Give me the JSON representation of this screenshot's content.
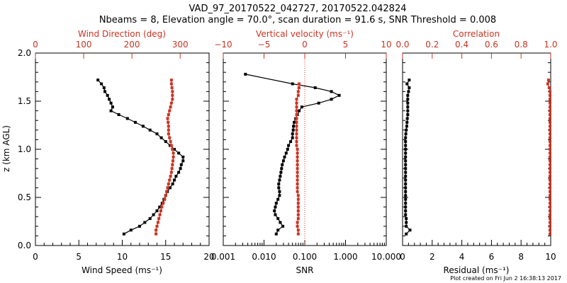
{
  "title": {
    "line1": "VAD_97_20170522_042727, 20170522.042824",
    "line2": "Nbeams = 8, Elevation angle = 70.0°, scan duration = 91.6 s, SNR Threshold = 0.008"
  },
  "footer": "Plot created on Fri Jun  2 16:38:13 2017",
  "colors": {
    "black_series": "#000000",
    "red_series": "#cc3322",
    "frame": "#000000"
  },
  "chart_data": [
    {
      "type": "line",
      "panel": "wind",
      "ylabel": "z (km AGL)",
      "ylim": [
        0,
        2
      ],
      "yticks": [
        "0.0",
        "0.5",
        "1.0",
        "1.5",
        "2.0"
      ],
      "xlabel": "Wind Speed (ms⁻¹)",
      "xlim": [
        0,
        20
      ],
      "xticks": [
        "0",
        "5",
        "10",
        "15",
        "20"
      ],
      "x2label": "Wind Direction (deg)",
      "x2lim": [
        0,
        360
      ],
      "x2ticks": [
        "0",
        "100",
        "200",
        "300"
      ],
      "series": [
        {
          "axis": "bottom",
          "color": "#000000",
          "points": [
            [
              10.2,
              0.12
            ],
            [
              11.0,
              0.16
            ],
            [
              12.0,
              0.2
            ],
            [
              12.6,
              0.24
            ],
            [
              13.2,
              0.28
            ],
            [
              13.6,
              0.32
            ],
            [
              14.0,
              0.36
            ],
            [
              14.3,
              0.4
            ],
            [
              14.6,
              0.44
            ],
            [
              14.8,
              0.48
            ],
            [
              15.0,
              0.52
            ],
            [
              15.2,
              0.56
            ],
            [
              15.5,
              0.6
            ],
            [
              15.8,
              0.64
            ],
            [
              16.0,
              0.68
            ],
            [
              16.2,
              0.72
            ],
            [
              16.5,
              0.76
            ],
            [
              16.7,
              0.8
            ],
            [
              16.8,
              0.84
            ],
            [
              17.0,
              0.88
            ],
            [
              17.0,
              0.92
            ],
            [
              16.5,
              0.96
            ],
            [
              16.0,
              1.0
            ],
            [
              15.5,
              1.04
            ],
            [
              15.0,
              1.08
            ],
            [
              14.5,
              1.12
            ],
            [
              14.0,
              1.16
            ],
            [
              13.2,
              1.2
            ],
            [
              12.4,
              1.24
            ],
            [
              11.5,
              1.28
            ],
            [
              10.6,
              1.32
            ],
            [
              9.6,
              1.36
            ],
            [
              8.7,
              1.4
            ],
            [
              8.9,
              1.44
            ],
            [
              8.7,
              1.48
            ],
            [
              8.5,
              1.52
            ],
            [
              8.3,
              1.56
            ],
            [
              8.0,
              1.6
            ],
            [
              7.9,
              1.64
            ],
            [
              7.6,
              1.68
            ],
            [
              7.2,
              1.72
            ]
          ]
        },
        {
          "axis": "top",
          "color": "#cc3322",
          "points": [
            [
              250,
              0.12
            ],
            [
              250,
              0.16
            ],
            [
              252,
              0.2
            ],
            [
              254,
              0.24
            ],
            [
              256,
              0.28
            ],
            [
              258,
              0.32
            ],
            [
              260,
              0.36
            ],
            [
              262,
              0.4
            ],
            [
              265,
              0.44
            ],
            [
              268,
              0.48
            ],
            [
              270,
              0.52
            ],
            [
              272,
              0.56
            ],
            [
              274,
              0.6
            ],
            [
              276,
              0.64
            ],
            [
              278,
              0.68
            ],
            [
              280,
              0.72
            ],
            [
              282,
              0.76
            ],
            [
              283,
              0.8
            ],
            [
              284,
              0.84
            ],
            [
              285,
              0.88
            ],
            [
              286,
              0.92
            ],
            [
              286,
              0.96
            ],
            [
              284,
              1.0
            ],
            [
              282,
              1.04
            ],
            [
              280,
              1.08
            ],
            [
              278,
              1.12
            ],
            [
              276,
              1.16
            ],
            [
              276,
              1.2
            ],
            [
              276,
              1.24
            ],
            [
              275,
              1.28
            ],
            [
              274,
              1.32
            ],
            [
              276,
              1.36
            ],
            [
              278,
              1.4
            ],
            [
              280,
              1.44
            ],
            [
              282,
              1.48
            ],
            [
              284,
              1.52
            ],
            [
              284,
              1.56
            ],
            [
              284,
              1.6
            ],
            [
              283,
              1.64
            ],
            [
              282,
              1.68
            ],
            [
              282,
              1.72
            ]
          ]
        }
      ]
    },
    {
      "type": "line",
      "panel": "vertical",
      "ylim": [
        0,
        2
      ],
      "xlabel": "SNR",
      "xscale": "log",
      "xlim": [
        0.001,
        10
      ],
      "xticks": [
        "0.001",
        "0.010",
        "0.100",
        "1.000",
        "10.000"
      ],
      "x2label": "Vertical velocity (ms⁻¹)",
      "x2lim": [
        -10,
        10
      ],
      "x2ticks": [
        "−10",
        "−5",
        "0",
        "5",
        "10"
      ],
      "zero_line_at": 0,
      "series": [
        {
          "axis": "bottom",
          "color": "#000000",
          "points": [
            [
              0.02,
              0.12
            ],
            [
              0.022,
              0.16
            ],
            [
              0.029,
              0.2
            ],
            [
              0.025,
              0.24
            ],
            [
              0.022,
              0.28
            ],
            [
              0.019,
              0.32
            ],
            [
              0.018,
              0.36
            ],
            [
              0.019,
              0.4
            ],
            [
              0.02,
              0.44
            ],
            [
              0.022,
              0.48
            ],
            [
              0.024,
              0.52
            ],
            [
              0.024,
              0.56
            ],
            [
              0.023,
              0.6
            ],
            [
              0.023,
              0.64
            ],
            [
              0.024,
              0.68
            ],
            [
              0.025,
              0.72
            ],
            [
              0.026,
              0.76
            ],
            [
              0.027,
              0.8
            ],
            [
              0.028,
              0.84
            ],
            [
              0.03,
              0.88
            ],
            [
              0.032,
              0.92
            ],
            [
              0.035,
              0.96
            ],
            [
              0.038,
              1.0
            ],
            [
              0.04,
              1.04
            ],
            [
              0.045,
              1.08
            ],
            [
              0.05,
              1.12
            ],
            [
              0.05,
              1.16
            ],
            [
              0.052,
              1.2
            ],
            [
              0.053,
              1.24
            ],
            [
              0.055,
              1.28
            ],
            [
              0.06,
              1.32
            ],
            [
              0.066,
              1.36
            ],
            [
              0.073,
              1.4
            ],
            [
              0.085,
              1.44
            ],
            [
              0.22,
              1.48
            ],
            [
              0.45,
              1.52
            ],
            [
              0.7,
              1.56
            ],
            [
              0.45,
              1.6
            ],
            [
              0.18,
              1.64
            ],
            [
              0.05,
              1.68
            ],
            [
              0.0035,
              1.78
            ]
          ]
        },
        {
          "axis": "top",
          "color": "#cc3322",
          "points": [
            [
              -0.8,
              0.12
            ],
            [
              -0.8,
              0.16
            ],
            [
              -0.9,
              0.2
            ],
            [
              -0.9,
              0.24
            ],
            [
              -0.8,
              0.28
            ],
            [
              -0.8,
              0.32
            ],
            [
              -0.8,
              0.36
            ],
            [
              -0.8,
              0.4
            ],
            [
              -0.8,
              0.44
            ],
            [
              -0.8,
              0.48
            ],
            [
              -0.8,
              0.52
            ],
            [
              -0.9,
              0.56
            ],
            [
              -0.9,
              0.6
            ],
            [
              -0.9,
              0.64
            ],
            [
              -0.9,
              0.68
            ],
            [
              -0.9,
              0.72
            ],
            [
              -0.9,
              0.76
            ],
            [
              -0.9,
              0.8
            ],
            [
              -0.9,
              0.84
            ],
            [
              -0.9,
              0.88
            ],
            [
              -0.9,
              0.92
            ],
            [
              -0.9,
              0.96
            ],
            [
              -0.9,
              1.0
            ],
            [
              -1.0,
              1.04
            ],
            [
              -1.0,
              1.08
            ],
            [
              -1.0,
              1.12
            ],
            [
              -1.0,
              1.16
            ],
            [
              -1.0,
              1.2
            ],
            [
              -1.0,
              1.24
            ],
            [
              -1.0,
              1.28
            ],
            [
              -1.0,
              1.32
            ],
            [
              -1.0,
              1.36
            ],
            [
              -1.0,
              1.4
            ],
            [
              -1.0,
              1.44
            ],
            [
              -1.0,
              1.48
            ],
            [
              -1.0,
              1.52
            ],
            [
              -0.8,
              1.56
            ],
            [
              -0.8,
              1.6
            ],
            [
              -0.7,
              1.64
            ],
            [
              -0.7,
              1.68
            ]
          ]
        }
      ]
    },
    {
      "type": "line",
      "panel": "correlation",
      "ylim": [
        0,
        2
      ],
      "xlabel": "Residual (ms⁻¹)",
      "xlim": [
        0,
        10
      ],
      "xticks": [
        "0",
        "2",
        "4",
        "6",
        "8",
        "10"
      ],
      "x2label": "Correlation",
      "x2lim": [
        0,
        1
      ],
      "x2ticks": [
        "0.0",
        "0.2",
        "0.4",
        "0.6",
        "0.8",
        "1.0"
      ],
      "series": [
        {
          "axis": "bottom",
          "color": "#000000",
          "points": [
            [
              0.25,
              0.12
            ],
            [
              0.5,
              0.16
            ],
            [
              0.25,
              0.2
            ],
            [
              0.25,
              0.24
            ],
            [
              0.25,
              0.28
            ],
            [
              0.2,
              0.32
            ],
            [
              0.2,
              0.36
            ],
            [
              0.2,
              0.4
            ],
            [
              0.2,
              0.44
            ],
            [
              0.2,
              0.48
            ],
            [
              0.2,
              0.52
            ],
            [
              0.2,
              0.56
            ],
            [
              0.2,
              0.6
            ],
            [
              0.2,
              0.64
            ],
            [
              0.2,
              0.68
            ],
            [
              0.2,
              0.72
            ],
            [
              0.2,
              0.76
            ],
            [
              0.2,
              0.8
            ],
            [
              0.2,
              0.84
            ],
            [
              0.2,
              0.88
            ],
            [
              0.2,
              0.92
            ],
            [
              0.2,
              0.96
            ],
            [
              0.2,
              1.0
            ],
            [
              0.2,
              1.04
            ],
            [
              0.2,
              1.08
            ],
            [
              0.2,
              1.12
            ],
            [
              0.22,
              1.16
            ],
            [
              0.25,
              1.2
            ],
            [
              0.28,
              1.24
            ],
            [
              0.3,
              1.28
            ],
            [
              0.32,
              1.32
            ],
            [
              0.35,
              1.36
            ],
            [
              0.35,
              1.4
            ],
            [
              0.35,
              1.44
            ],
            [
              0.35,
              1.48
            ],
            [
              0.35,
              1.52
            ],
            [
              0.35,
              1.56
            ],
            [
              0.4,
              1.6
            ],
            [
              0.45,
              1.64
            ],
            [
              0.3,
              1.68
            ],
            [
              0.45,
              1.72
            ]
          ]
        },
        {
          "axis": "top",
          "color": "#cc3322",
          "points": [
            [
              0.995,
              0.12
            ],
            [
              0.995,
              0.16
            ],
            [
              0.995,
              0.2
            ],
            [
              0.995,
              0.24
            ],
            [
              0.995,
              0.28
            ],
            [
              0.995,
              0.32
            ],
            [
              0.995,
              0.36
            ],
            [
              0.995,
              0.4
            ],
            [
              0.995,
              0.44
            ],
            [
              0.995,
              0.48
            ],
            [
              0.995,
              0.52
            ],
            [
              0.995,
              0.56
            ],
            [
              0.995,
              0.6
            ],
            [
              0.995,
              0.64
            ],
            [
              0.995,
              0.68
            ],
            [
              0.995,
              0.72
            ],
            [
              0.995,
              0.76
            ],
            [
              0.995,
              0.8
            ],
            [
              0.995,
              0.84
            ],
            [
              0.995,
              0.88
            ],
            [
              0.995,
              0.92
            ],
            [
              0.995,
              0.96
            ],
            [
              0.995,
              1.0
            ],
            [
              0.995,
              1.04
            ],
            [
              0.995,
              1.08
            ],
            [
              0.995,
              1.12
            ],
            [
              0.995,
              1.16
            ],
            [
              0.995,
              1.2
            ],
            [
              0.995,
              1.24
            ],
            [
              0.995,
              1.28
            ],
            [
              0.995,
              1.32
            ],
            [
              0.995,
              1.36
            ],
            [
              0.995,
              1.4
            ],
            [
              0.995,
              1.44
            ],
            [
              0.995,
              1.48
            ],
            [
              0.995,
              1.52
            ],
            [
              0.995,
              1.56
            ],
            [
              0.995,
              1.6
            ],
            [
              0.99,
              1.64
            ],
            [
              0.98,
              1.68
            ],
            [
              0.985,
              1.72
            ]
          ]
        }
      ]
    }
  ]
}
